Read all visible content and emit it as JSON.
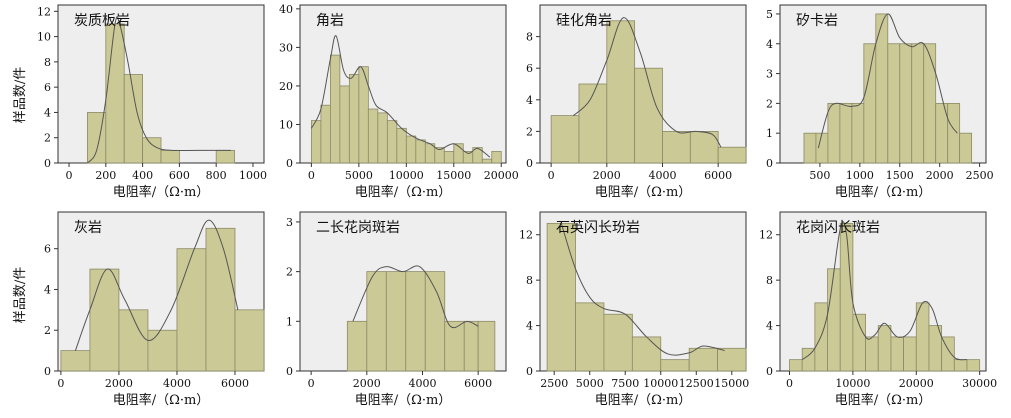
{
  "figure": {
    "ylabel": "样品数/件",
    "xlabel": "电阻率/（Ω·m）",
    "colors": {
      "bar_fill": "#cbc995",
      "bar_stroke": "#8c8a66",
      "panel_bg": "#eeeeee",
      "curve": "#555555",
      "axis": "#333333"
    }
  },
  "chart_data": [
    {
      "type": "bar",
      "title": "炭质板岩",
      "xlabel": "电阻率/（Ω·m）",
      "ylabel": "样品数/件",
      "xlim": [
        -60,
        1060
      ],
      "ylim": [
        0,
        12.5
      ],
      "xticks": [
        0,
        200,
        400,
        600,
        800,
        1000
      ],
      "yticks": [
        0,
        2,
        4,
        6,
        8,
        10,
        12
      ],
      "bins": [
        [
          100,
          200,
          4
        ],
        [
          200,
          300,
          11
        ],
        [
          300,
          400,
          7
        ],
        [
          400,
          500,
          2
        ],
        [
          500,
          600,
          1
        ],
        [
          800,
          900,
          1
        ]
      ],
      "curve": [
        [
          100,
          0
        ],
        [
          150,
          1
        ],
        [
          200,
          5
        ],
        [
          250,
          11
        ],
        [
          275,
          11
        ],
        [
          320,
          8
        ],
        [
          370,
          4
        ],
        [
          420,
          2
        ],
        [
          480,
          1.2
        ],
        [
          560,
          1
        ],
        [
          700,
          1
        ],
        [
          880,
          1
        ]
      ]
    },
    {
      "type": "bar",
      "title": "角岩",
      "xlabel": "电阻率/（Ω·m）",
      "ylabel": "样品数/件",
      "xlim": [
        -1200,
        20500
      ],
      "ylim": [
        0,
        41
      ],
      "xticks": [
        0,
        5000,
        10000,
        15000,
        20000
      ],
      "yticks": [
        0,
        10,
        20,
        30,
        40
      ],
      "bins": [
        [
          0,
          1000,
          11
        ],
        [
          1000,
          2000,
          15
        ],
        [
          2000,
          3000,
          28
        ],
        [
          3000,
          4000,
          20
        ],
        [
          4000,
          5000,
          23
        ],
        [
          5000,
          6000,
          25
        ],
        [
          6000,
          7000,
          14
        ],
        [
          7000,
          8000,
          13
        ],
        [
          8000,
          9000,
          11
        ],
        [
          9000,
          10000,
          9
        ],
        [
          10000,
          11000,
          7
        ],
        [
          11000,
          12000,
          6
        ],
        [
          12000,
          13000,
          5
        ],
        [
          13000,
          14000,
          4
        ],
        [
          14000,
          15000,
          3
        ],
        [
          15000,
          16000,
          5
        ],
        [
          16000,
          17000,
          3
        ],
        [
          17000,
          18000,
          4
        ],
        [
          18000,
          19000,
          1
        ],
        [
          19000,
          20000,
          3
        ]
      ],
      "curve": [
        [
          0,
          9
        ],
        [
          1000,
          14
        ],
        [
          2000,
          27
        ],
        [
          2600,
          33
        ],
        [
          3400,
          24
        ],
        [
          4200,
          22
        ],
        [
          5200,
          25
        ],
        [
          6000,
          20
        ],
        [
          6800,
          15
        ],
        [
          8000,
          13
        ],
        [
          9500,
          9
        ],
        [
          11000,
          6.5
        ],
        [
          12500,
          5
        ],
        [
          13500,
          3.5
        ],
        [
          15000,
          5
        ],
        [
          16500,
          2.5
        ],
        [
          17500,
          3.8
        ],
        [
          18800,
          1.5
        ]
      ]
    },
    {
      "type": "bar",
      "title": "硅化角岩",
      "xlabel": "电阻率/（Ω·m）",
      "ylabel": "样品数/件",
      "xlim": [
        -400,
        7000
      ],
      "ylim": [
        0,
        10
      ],
      "xticks": [
        0,
        2000,
        4000,
        6000
      ],
      "yticks": [
        0,
        2,
        4,
        6,
        8
      ],
      "bins": [
        [
          0,
          1000,
          3
        ],
        [
          1000,
          2000,
          5
        ],
        [
          2000,
          3000,
          9
        ],
        [
          3000,
          4000,
          6
        ],
        [
          4000,
          5000,
          2
        ],
        [
          5000,
          6000,
          2
        ],
        [
          6000,
          7000,
          1
        ]
      ],
      "curve": [
        [
          800,
          3
        ],
        [
          1400,
          4
        ],
        [
          2000,
          6.5
        ],
        [
          2600,
          9.2
        ],
        [
          3200,
          7
        ],
        [
          3800,
          3.5
        ],
        [
          4500,
          2
        ],
        [
          5200,
          2
        ],
        [
          5800,
          1.8
        ],
        [
          6100,
          1
        ]
      ]
    },
    {
      "type": "bar",
      "title": "矽卡岩",
      "xlabel": "电阻率/（Ω·m）",
      "ylabel": "样品数/件",
      "xlim": [
        0,
        2580
      ],
      "ylim": [
        0,
        5.3
      ],
      "xticks": [
        500,
        1000,
        1500,
        2000,
        2500
      ],
      "yticks": [
        0,
        1,
        2,
        3,
        4,
        5
      ],
      "bins": [
        [
          300,
          450,
          1
        ],
        [
          450,
          600,
          1
        ],
        [
          600,
          750,
          2
        ],
        [
          750,
          900,
          2
        ],
        [
          900,
          1050,
          2
        ],
        [
          1050,
          1200,
          4
        ],
        [
          1200,
          1350,
          5
        ],
        [
          1350,
          1500,
          4
        ],
        [
          1500,
          1650,
          4
        ],
        [
          1650,
          1800,
          4
        ],
        [
          1800,
          1950,
          4
        ],
        [
          1950,
          2100,
          2
        ],
        [
          2100,
          2250,
          2
        ],
        [
          2250,
          2400,
          1
        ]
      ],
      "curve": [
        [
          480,
          0.5
        ],
        [
          600,
          1.7
        ],
        [
          700,
          2
        ],
        [
          900,
          1.9
        ],
        [
          1050,
          2.2
        ],
        [
          1200,
          4
        ],
        [
          1350,
          5
        ],
        [
          1500,
          4.2
        ],
        [
          1650,
          3.9
        ],
        [
          1800,
          4
        ],
        [
          1950,
          3
        ],
        [
          2100,
          1.5
        ],
        [
          2220,
          1
        ]
      ]
    },
    {
      "type": "bar",
      "title": "灰岩",
      "xlabel": "电阻率/（Ω·m）",
      "ylabel": "样品数/件",
      "xlim": [
        -100,
        7000
      ],
      "ylim": [
        0,
        7.8
      ],
      "xticks": [
        0,
        2000,
        4000,
        6000
      ],
      "yticks": [
        0,
        2,
        4,
        6
      ],
      "bins": [
        [
          0,
          1000,
          1
        ],
        [
          1000,
          2000,
          5
        ],
        [
          2000,
          3000,
          3
        ],
        [
          3000,
          4000,
          2
        ],
        [
          4000,
          5000,
          6
        ],
        [
          5000,
          6000,
          7
        ],
        [
          6000,
          7000,
          3
        ]
      ],
      "curve": [
        [
          500,
          1
        ],
        [
          1000,
          3
        ],
        [
          1600,
          5
        ],
        [
          2200,
          3.5
        ],
        [
          3000,
          1.5
        ],
        [
          3800,
          3
        ],
        [
          4600,
          6
        ],
        [
          5100,
          7.4
        ],
        [
          5600,
          6
        ],
        [
          6100,
          3
        ]
      ]
    },
    {
      "type": "bar",
      "title": "二长花岗斑岩",
      "xlabel": "电阻率/（Ω·m）",
      "ylabel": "样品数/件",
      "xlim": [
        -400,
        7000
      ],
      "ylim": [
        0,
        3.2
      ],
      "xticks": [
        0,
        2000,
        4000,
        6000
      ],
      "yticks": [
        0,
        1,
        2,
        3
      ],
      "bins": [
        [
          1300,
          2000,
          1
        ],
        [
          2000,
          2700,
          2
        ],
        [
          2700,
          3400,
          2
        ],
        [
          3400,
          4100,
          2
        ],
        [
          4100,
          4800,
          2
        ],
        [
          4800,
          5500,
          1
        ],
        [
          5500,
          6000,
          1
        ],
        [
          6000,
          6600,
          1
        ]
      ],
      "curve": [
        [
          1500,
          1
        ],
        [
          2200,
          1.9
        ],
        [
          2700,
          2.1
        ],
        [
          3300,
          2
        ],
        [
          3900,
          2.1
        ],
        [
          4500,
          1.6
        ],
        [
          5000,
          0.9
        ],
        [
          5600,
          1
        ],
        [
          6000,
          0.9
        ]
      ]
    },
    {
      "type": "bar",
      "title": "石英闪长玢岩",
      "xlabel": "电阻率/（Ω·m）",
      "ylabel": "样品数/件",
      "xlim": [
        1500,
        16000
      ],
      "ylim": [
        0,
        14
      ],
      "xticks": [
        2500,
        5000,
        7500,
        10000,
        12500,
        15000
      ],
      "yticks": [
        0,
        4,
        8,
        12
      ],
      "bins": [
        [
          2000,
          4000,
          13
        ],
        [
          4000,
          6000,
          6
        ],
        [
          6000,
          8000,
          5
        ],
        [
          8000,
          10000,
          3
        ],
        [
          10000,
          12000,
          1
        ],
        [
          12000,
          14000,
          2
        ],
        [
          14000,
          16000,
          2
        ]
      ],
      "curve": [
        [
          3000,
          13
        ],
        [
          4000,
          9
        ],
        [
          5000,
          6.5
        ],
        [
          6000,
          5.5
        ],
        [
          7500,
          5
        ],
        [
          9000,
          3
        ],
        [
          10500,
          1.5
        ],
        [
          12000,
          1.6
        ],
        [
          13000,
          2.2
        ],
        [
          14500,
          1.8
        ]
      ]
    },
    {
      "type": "bar",
      "title": "花岗闪长斑岩",
      "xlabel": "电阻率/（Ω·m）",
      "ylabel": "样品数/件",
      "xlim": [
        -1500,
        31000
      ],
      "ylim": [
        0,
        14
      ],
      "xticks": [
        0,
        10000,
        20000,
        30000
      ],
      "yticks": [
        0,
        4,
        8,
        12
      ],
      "bins": [
        [
          0,
          2000,
          1
        ],
        [
          2000,
          4000,
          2
        ],
        [
          4000,
          6000,
          6
        ],
        [
          6000,
          8000,
          9
        ],
        [
          8000,
          10000,
          13
        ],
        [
          10000,
          12000,
          5
        ],
        [
          12000,
          14000,
          3
        ],
        [
          14000,
          16000,
          4
        ],
        [
          16000,
          18000,
          3
        ],
        [
          18000,
          20000,
          3
        ],
        [
          20000,
          22000,
          6
        ],
        [
          22000,
          24000,
          4
        ],
        [
          24000,
          26000,
          3
        ],
        [
          26000,
          28000,
          1
        ],
        [
          28000,
          30000,
          1
        ]
      ],
      "curve": [
        [
          2000,
          1
        ],
        [
          4000,
          2
        ],
        [
          6000,
          5
        ],
        [
          8000,
          12.5
        ],
        [
          9000,
          12
        ],
        [
          10000,
          6
        ],
        [
          12000,
          3
        ],
        [
          13500,
          3.2
        ],
        [
          15000,
          4.2
        ],
        [
          17000,
          3
        ],
        [
          19000,
          3.5
        ],
        [
          21000,
          6
        ],
        [
          22500,
          5.5
        ],
        [
          24000,
          3
        ],
        [
          26000,
          1.2
        ],
        [
          28000,
          1
        ]
      ]
    }
  ]
}
